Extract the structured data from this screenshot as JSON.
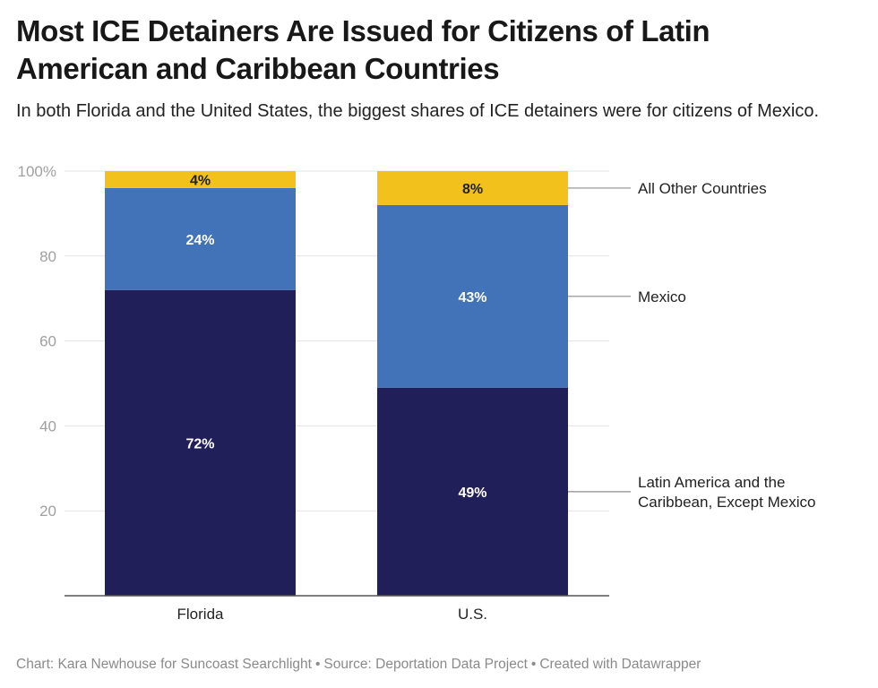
{
  "header": {
    "title": "Most ICE Detainers Are Issued for Citizens of Latin American and Caribbean Countries",
    "subtitle": "In both Florida and the United States, the biggest shares of ICE detainers were for citizens of Mexico."
  },
  "footer": {
    "chart_credit": "Chart: Kara Newhouse for Suncoast Searchlight",
    "source": "Source: Deportation Data Project",
    "created_with": "Created with Datawrapper",
    "separator": "•"
  },
  "chart_data": {
    "type": "bar",
    "stacked": true,
    "orientation": "vertical",
    "title": "Most ICE Detainers Are Issued for Citizens of Latin American and Caribbean Countries",
    "subtitle": "In both Florida and the United States, the biggest shares of ICE detainers were for citizens of Mexico.",
    "xlabel": "",
    "ylabel": "",
    "categories": [
      "Florida",
      "U.S."
    ],
    "ylim": [
      0,
      100
    ],
    "yticks": [
      20,
      40,
      60,
      80,
      100
    ],
    "ytick_labels": [
      "20",
      "40",
      "60",
      "80",
      "100%"
    ],
    "grid": true,
    "legend": "direct labels on right",
    "series": [
      {
        "name": "Latin America and the Caribbean, Except Mexico",
        "label_lines": [
          "Latin America and the",
          "Caribbean, Except Mexico"
        ],
        "values": [
          72,
          49
        ],
        "labels": [
          "72%",
          "49%"
        ],
        "color": "#211f59",
        "label_color": "#ffffff"
      },
      {
        "name": "Mexico",
        "label_lines": [
          "Mexico"
        ],
        "values": [
          24,
          43
        ],
        "labels": [
          "24%",
          "43%"
        ],
        "color": "#4272b7",
        "label_color": "#ffffff"
      },
      {
        "name": "All Other Countries",
        "label_lines": [
          "All Other Countries"
        ],
        "values": [
          4,
          8
        ],
        "labels": [
          "4%",
          "8%"
        ],
        "color": "#f2c11b",
        "label_color": "#222222"
      }
    ]
  }
}
